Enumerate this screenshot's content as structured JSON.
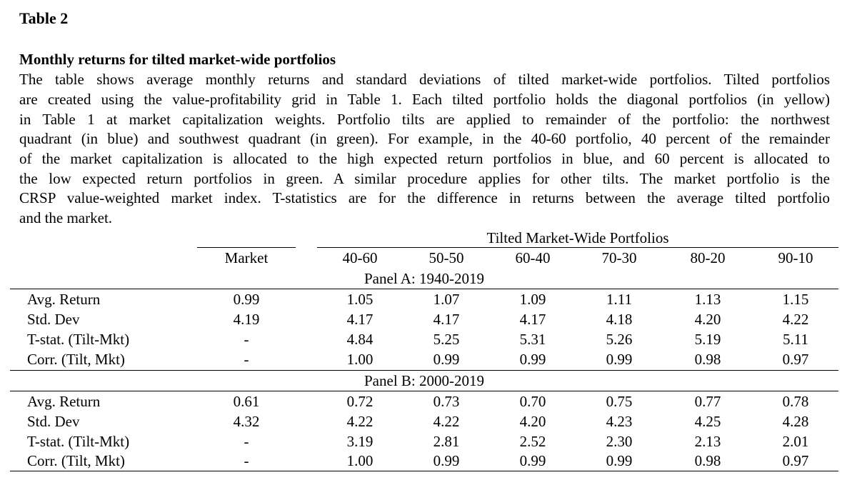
{
  "table_label": "Table 2",
  "caption": {
    "title": "Monthly returns for tilted market-wide portfolios",
    "lines": [
      "The table shows average monthly returns and standard deviations of tilted market-wide portfolios. Tilted portfolios",
      "are created using the value-profitability grid in Table 1.  Each tilted portfolio holds the diagonal portfolios (in yellow)",
      "in Table 1 at market capitalization weights.  Portfolio tilts are applied to remainder of the portfolio: the northwest",
      "quadrant (in blue) and southwest quadrant (in green).  For example, in the 40-60 portfolio, 40 percent of the remainder",
      "of the market capitalization is allocated to the high expected return portfolios in blue, and 60 percent is allocated to",
      "the low expected return portfolios in green.  A similar procedure applies for other tilts.  The market portfolio is the",
      "CRSP value-weighted market index.  T-statistics are for the difference in returns between the average tilted portfolio",
      "and the market."
    ]
  },
  "table": {
    "group_header": "Tilted Market-Wide Portfolios",
    "columns": [
      "Market",
      "40-60",
      "50-50",
      "60-40",
      "70-30",
      "80-20",
      "90-10"
    ],
    "panels": [
      {
        "title": "Panel A: 1940-2019",
        "rows": [
          {
            "label": "Avg. Return",
            "values": [
              "0.99",
              "1.05",
              "1.07",
              "1.09",
              "1.11",
              "1.13",
              "1.15"
            ]
          },
          {
            "label": "Std. Dev",
            "values": [
              "4.19",
              "4.17",
              "4.17",
              "4.17",
              "4.18",
              "4.20",
              "4.22"
            ]
          },
          {
            "label": "T-stat. (Tilt-Mkt)",
            "values": [
              "-",
              "4.84",
              "5.25",
              "5.31",
              "5.26",
              "5.19",
              "5.11"
            ]
          },
          {
            "label": "Corr. (Tilt, Mkt)",
            "values": [
              "-",
              "1.00",
              "0.99",
              "0.99",
              "0.99",
              "0.98",
              "0.97"
            ]
          }
        ]
      },
      {
        "title": "Panel B: 2000-2019",
        "rows": [
          {
            "label": "Avg. Return",
            "values": [
              "0.61",
              "0.72",
              "0.73",
              "0.70",
              "0.75",
              "0.77",
              "0.78"
            ]
          },
          {
            "label": "Std. Dev",
            "values": [
              "4.32",
              "4.22",
              "4.22",
              "4.20",
              "4.23",
              "4.25",
              "4.28"
            ]
          },
          {
            "label": "T-stat. (Tilt-Mkt)",
            "values": [
              "-",
              "3.19",
              "2.81",
              "2.52",
              "2.30",
              "2.13",
              "2.01"
            ]
          },
          {
            "label": "Corr. (Tilt, Mkt)",
            "values": [
              "-",
              "1.00",
              "0.99",
              "0.99",
              "0.99",
              "0.98",
              "0.97"
            ]
          }
        ]
      }
    ]
  }
}
